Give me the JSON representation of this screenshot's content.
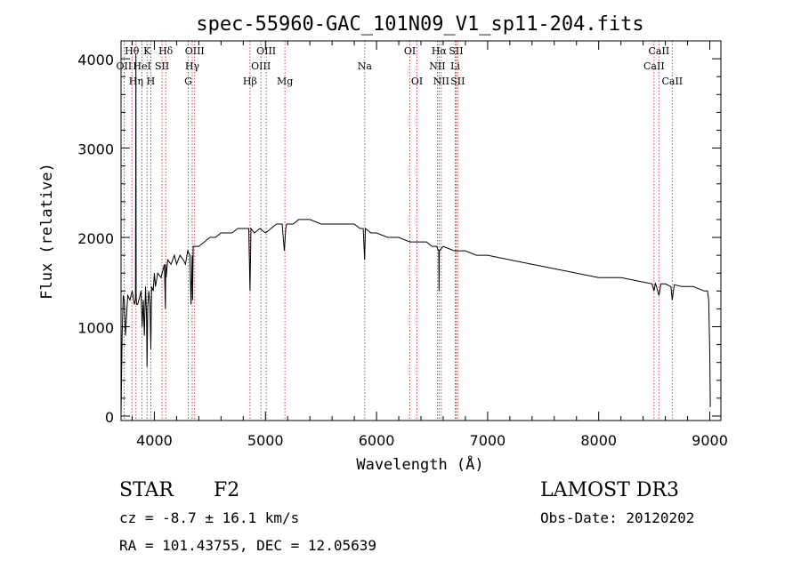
{
  "chart_data": {
    "type": "line",
    "title": "spec-55960-GAC_101N09_V1_sp11-204.fits",
    "xlabel": "Wavelength (Å)",
    "ylabel": "Flux (relative)",
    "xlim": [
      3700,
      9100
    ],
    "ylim": [
      -50,
      4200
    ],
    "xticks": [
      4000,
      5000,
      6000,
      7000,
      8000,
      9000
    ],
    "yticks": [
      0,
      1000,
      2000,
      3000,
      4000
    ],
    "series": [
      {
        "name": "spectrum",
        "x": [
          3700,
          3710,
          3720,
          3730,
          3740,
          3760,
          3780,
          3800,
          3820,
          3830,
          3834,
          3836,
          3840,
          3850,
          3860,
          3880,
          3890,
          3900,
          3910,
          3920,
          3930,
          3934,
          3940,
          3950,
          3960,
          3968,
          3975,
          3990,
          4000,
          4010,
          4030,
          4060,
          4090,
          4100,
          4102,
          4106,
          4120,
          4150,
          4180,
          4200,
          4230,
          4260,
          4280,
          4300,
          4320,
          4330,
          4340,
          4344,
          4350,
          4370,
          4400,
          4450,
          4500,
          4550,
          4600,
          4650,
          4700,
          4750,
          4800,
          4850,
          4861,
          4870,
          4900,
          4950,
          5000,
          5050,
          5100,
          5150,
          5170,
          5183,
          5190,
          5250,
          5300,
          5400,
          5500,
          5600,
          5700,
          5800,
          5850,
          5880,
          5893,
          5900,
          5950,
          6000,
          6100,
          6200,
          6300,
          6400,
          6450,
          6500,
          6540,
          6560,
          6563,
          6566,
          6600,
          6700,
          6800,
          6900,
          7000,
          7200,
          7400,
          7600,
          7800,
          8000,
          8200,
          8400,
          8480,
          8498,
          8510,
          8542,
          8560,
          8600,
          8650,
          8662,
          8680,
          8750,
          8850,
          8950,
          8980,
          8990,
          9000,
          9005
        ],
        "values": [
          20,
          900,
          1350,
          1300,
          900,
          1350,
          1300,
          1400,
          1250,
          1300,
          4050,
          1350,
          1250,
          1250,
          1300,
          1400,
          1000,
          1300,
          900,
          1450,
          1100,
          550,
          1200,
          1400,
          1250,
          750,
          1450,
          1400,
          1600,
          1450,
          1600,
          1550,
          1700,
          1200,
          1700,
          1550,
          1750,
          1700,
          1800,
          1700,
          1800,
          1750,
          1700,
          1850,
          1800,
          1250,
          1800,
          1300,
          1900,
          1900,
          1900,
          1950,
          2000,
          2000,
          2050,
          2050,
          2050,
          2100,
          2100,
          2100,
          1400,
          2100,
          2050,
          2100,
          2050,
          2100,
          2150,
          2150,
          1850,
          2100,
          2150,
          2150,
          2200,
          2200,
          2150,
          2150,
          2150,
          2150,
          2100,
          2100,
          1750,
          2100,
          2050,
          2050,
          2000,
          2000,
          1950,
          1950,
          1950,
          1900,
          1900,
          1850,
          1400,
          1850,
          1900,
          1850,
          1850,
          1800,
          1800,
          1750,
          1700,
          1650,
          1600,
          1550,
          1550,
          1500,
          1480,
          1400,
          1490,
          1350,
          1480,
          1480,
          1450,
          1300,
          1470,
          1450,
          1450,
          1400,
          1400,
          1300,
          700,
          100
        ]
      }
    ],
    "lines": [
      {
        "label": "OII",
        "wl": 3727,
        "row": 1
      },
      {
        "label": "Hθ",
        "wl": 3798,
        "row": 0
      },
      {
        "label": "Hη",
        "wl": 3835,
        "row": 2
      },
      {
        "label": "HeI",
        "wl": 3889,
        "row": 1
      },
      {
        "label": "K",
        "wl": 3934,
        "row": 0
      },
      {
        "label": "H",
        "wl": 3968,
        "row": 2
      },
      {
        "label": "SII",
        "wl": 4069,
        "row": 1
      },
      {
        "label": "Hδ",
        "wl": 4102,
        "row": 0
      },
      {
        "label": "G",
        "wl": 4305,
        "row": 2
      },
      {
        "label": "Hγ",
        "wl": 4341,
        "row": 1
      },
      {
        "label": "OIII",
        "wl": 4363,
        "row": 0
      },
      {
        "label": "Hβ",
        "wl": 4861,
        "row": 2
      },
      {
        "label": "OIII",
        "wl": 4959,
        "row": 1
      },
      {
        "label": "OIII",
        "wl": 5007,
        "row": 0
      },
      {
        "label": "Mg",
        "wl": 5175,
        "row": 2
      },
      {
        "label": "Na",
        "wl": 5894,
        "row": 1
      },
      {
        "label": "OI",
        "wl": 6300,
        "row": 0
      },
      {
        "label": "OI",
        "wl": 6364,
        "row": 2
      },
      {
        "label": "NII",
        "wl": 6548,
        "row": 1
      },
      {
        "label": "Hα",
        "wl": 6563,
        "row": 0
      },
      {
        "label": "NII",
        "wl": 6583,
        "row": 2
      },
      {
        "label": "Li",
        "wl": 6708,
        "row": 1
      },
      {
        "label": "SII",
        "wl": 6716,
        "row": 0
      },
      {
        "label": "SII",
        "wl": 6731,
        "row": 2
      },
      {
        "label": "CaII",
        "wl": 8498,
        "row": 1
      },
      {
        "label": "CaII",
        "wl": 8542,
        "row": 0
      },
      {
        "label": "CaII",
        "wl": 8662,
        "row": 2
      }
    ],
    "colors": {
      "spectrum": "#000000",
      "line_markers": "#b22222"
    }
  },
  "info": {
    "object_class": "STAR",
    "subclass": "F2",
    "survey": "LAMOST DR3",
    "redshift": "cz = -8.7 ± 16.1 km/s",
    "obs_date": "Obs-Date: 20120202",
    "coords": "RA = 101.43755, DEC =  12.05639"
  }
}
